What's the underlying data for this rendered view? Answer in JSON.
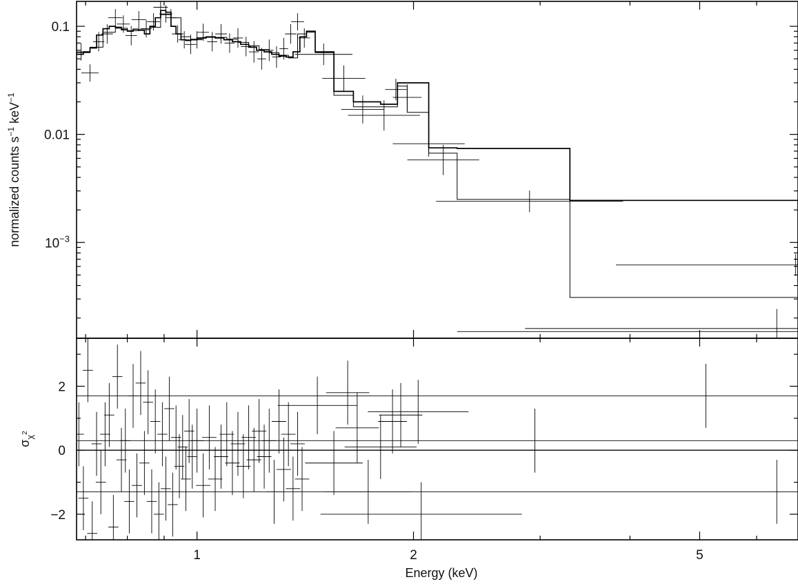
{
  "chart_data": [
    {
      "type": "step",
      "panel": "spectrum",
      "ylabel_main": "normalized counts s",
      "ylabel_exp1": "−1",
      "ylabel_mid": " keV",
      "ylabel_exp2": "−1",
      "x_scale": "log",
      "y_scale": "log",
      "xlim": [
        0.68,
        6.85
      ],
      "ylim": [
        0.00013,
        0.17
      ],
      "yticks": [
        {
          "value": 0.1,
          "label": "0.1"
        },
        {
          "value": 0.01,
          "label": "0.01"
        },
        {
          "value": 0.001,
          "label": "10",
          "exp": "−3"
        }
      ],
      "model_a_edges": [
        0.68,
        0.695,
        0.71,
        0.725,
        0.74,
        0.755,
        0.77,
        0.785,
        0.8,
        0.815,
        0.83,
        0.845,
        0.86,
        0.875,
        0.89,
        0.905,
        0.92,
        0.935,
        0.95,
        0.965,
        0.98,
        1.0,
        1.03,
        1.06,
        1.09,
        1.12,
        1.15,
        1.18,
        1.21,
        1.24,
        1.27,
        1.3,
        1.33,
        1.36,
        1.39,
        1.42,
        1.46,
        1.55,
        1.65,
        1.8,
        1.9,
        2.1,
        2.3,
        3.3,
        6.85
      ],
      "model_a_values": [
        0.055,
        0.058,
        0.063,
        0.083,
        0.095,
        0.1,
        0.098,
        0.093,
        0.09,
        0.094,
        0.092,
        0.085,
        0.1,
        0.12,
        0.14,
        0.135,
        0.1,
        0.085,
        0.075,
        0.074,
        0.075,
        0.078,
        0.08,
        0.078,
        0.075,
        0.072,
        0.068,
        0.064,
        0.06,
        0.058,
        0.055,
        0.053,
        0.052,
        0.058,
        0.08,
        0.09,
        0.058,
        0.025,
        0.02,
        0.019,
        0.03,
        0.0075,
        0.0074,
        0.00245,
        0.00043
      ],
      "model_b_edges": [
        0.68,
        0.71,
        0.74,
        0.77,
        0.8,
        0.83,
        0.86,
        0.89,
        0.92,
        0.95,
        0.98,
        1.02,
        1.06,
        1.1,
        1.14,
        1.18,
        1.22,
        1.26,
        1.3,
        1.34,
        1.38,
        1.42,
        1.46,
        1.55,
        1.65,
        1.8,
        1.9,
        1.96,
        2.1,
        2.3,
        3.3,
        6.85
      ],
      "model_b_values": [
        0.057,
        0.064,
        0.088,
        0.096,
        0.091,
        0.093,
        0.098,
        0.128,
        0.12,
        0.08,
        0.076,
        0.079,
        0.079,
        0.076,
        0.071,
        0.066,
        0.061,
        0.057,
        0.054,
        0.051,
        0.085,
        0.088,
        0.057,
        0.023,
        0.018,
        0.018,
        0.028,
        0.016,
        0.0067,
        0.0025,
        0.00031
      ],
      "data_points": [
        [
          0.69,
          0.058,
          0.0075,
          0.08
        ],
        [
          0.71,
          0.037,
          0.012,
          0.08
        ],
        [
          0.73,
          0.072,
          0.008,
          0.09
        ],
        [
          0.75,
          0.085,
          0.008,
          0.09
        ],
        [
          0.77,
          0.12,
          0.01,
          0.08
        ],
        [
          0.79,
          0.105,
          0.009,
          0.08
        ],
        [
          0.81,
          0.082,
          0.008,
          0.09
        ],
        [
          0.83,
          0.115,
          0.01,
          0.08
        ],
        [
          0.85,
          0.095,
          0.008,
          0.08
        ],
        [
          0.87,
          0.11,
          0.009,
          0.08
        ],
        [
          0.89,
          0.15,
          0.01,
          0.08
        ],
        [
          0.905,
          0.13,
          0.009,
          0.08
        ],
        [
          0.92,
          0.12,
          0.008,
          0.08
        ],
        [
          0.94,
          0.085,
          0.008,
          0.08
        ],
        [
          0.96,
          0.075,
          0.008,
          0.08
        ],
        [
          0.98,
          0.068,
          0.008,
          0.09
        ],
        [
          1.0,
          0.075,
          0.007,
          0.08
        ],
        [
          1.02,
          0.088,
          0.008,
          0.08
        ],
        [
          1.05,
          0.072,
          0.007,
          0.09
        ],
        [
          1.08,
          0.085,
          0.008,
          0.09
        ],
        [
          1.11,
          0.07,
          0.007,
          0.09
        ],
        [
          1.14,
          0.078,
          0.007,
          0.09
        ],
        [
          1.17,
          0.065,
          0.007,
          0.09
        ],
        [
          1.2,
          0.058,
          0.007,
          0.1
        ],
        [
          1.23,
          0.05,
          0.006,
          0.1
        ],
        [
          1.26,
          0.06,
          0.006,
          0.1
        ],
        [
          1.29,
          0.052,
          0.006,
          0.1
        ],
        [
          1.32,
          0.062,
          0.006,
          0.1
        ],
        [
          1.35,
          0.085,
          0.008,
          0.09
        ],
        [
          1.38,
          0.11,
          0.009,
          0.08
        ],
        [
          1.41,
          0.078,
          0.008,
          0.09
        ],
        [
          1.5,
          0.055,
          0.04,
          0.1
        ],
        [
          1.6,
          0.033,
          0.03,
          0.12
        ],
        [
          1.7,
          0.017,
          0.03,
          0.13
        ],
        [
          1.82,
          0.015,
          0.05,
          0.14
        ],
        [
          1.89,
          0.026,
          0.015,
          0.1
        ],
        [
          1.96,
          0.022,
          0.02,
          0.12
        ],
        [
          2.1,
          0.0082,
          0.05,
          0.12
        ],
        [
          2.2,
          0.0058,
          0.05,
          0.14
        ],
        [
          2.9,
          0.0024,
          0.13,
          0.1
        ],
        [
          6.8,
          0.00062,
          0.25,
          0.1
        ],
        [
          6.4,
          0.00016,
          0.35,
          0.18
        ]
      ],
      "bg_segments": [
        [
          2.3,
          6.85,
          0.00015
        ]
      ]
    },
    {
      "type": "residuals",
      "panel": "residuals",
      "xlabel": "Energy (keV)",
      "ylabel_main": "σ",
      "ylabel_sub": "χ",
      "ylabel_sup": "2",
      "x_scale": "log",
      "xlim": [
        0.68,
        6.85
      ],
      "ylim": [
        -2.8,
        3.5
      ],
      "yticks": [
        {
          "value": 2,
          "label": "2"
        },
        {
          "value": 0,
          "label": "0"
        },
        {
          "value": -2,
          "label": "−2"
        }
      ],
      "xticks": [
        {
          "value": 1,
          "label": "1"
        },
        {
          "value": 2,
          "label": "2"
        },
        {
          "value": 5,
          "label": "5"
        }
      ],
      "x_minor_ticks": [
        0.7,
        0.8,
        0.9,
        3,
        4,
        6
      ],
      "residuals": [
        [
          0.685,
          0.5,
          0.007,
          1.0
        ],
        [
          0.695,
          -1.5,
          0.007,
          1.0
        ],
        [
          0.705,
          2.5,
          0.007,
          1.0
        ],
        [
          0.715,
          -2.6,
          0.007,
          1.0
        ],
        [
          0.725,
          0.2,
          0.007,
          1.0
        ],
        [
          0.735,
          -1.0,
          0.007,
          1.0
        ],
        [
          0.745,
          0.5,
          0.007,
          1.0
        ],
        [
          0.755,
          1.1,
          0.007,
          1.0
        ],
        [
          0.765,
          -2.4,
          0.007,
          1.0
        ],
        [
          0.775,
          2.3,
          0.007,
          1.0
        ],
        [
          0.785,
          -0.3,
          0.007,
          1.0
        ],
        [
          0.795,
          0.3,
          0.007,
          1.0
        ],
        [
          0.805,
          -1.6,
          0.007,
          1.0
        ],
        [
          0.815,
          1.7,
          0.007,
          1.0
        ],
        [
          0.825,
          -1.1,
          0.007,
          1.0
        ],
        [
          0.835,
          2.1,
          0.007,
          1.0
        ],
        [
          0.845,
          -0.4,
          0.007,
          1.0
        ],
        [
          0.855,
          1.5,
          0.007,
          1.0
        ],
        [
          0.865,
          -1.6,
          0.007,
          1.0
        ],
        [
          0.875,
          0.9,
          0.007,
          1.0
        ],
        [
          0.885,
          -2.0,
          0.007,
          1.0
        ],
        [
          0.895,
          0.5,
          0.007,
          1.0
        ],
        [
          0.905,
          -1.2,
          0.007,
          1.0
        ],
        [
          0.915,
          1.3,
          0.007,
          1.0
        ],
        [
          0.925,
          -1.7,
          0.007,
          1.0
        ],
        [
          0.935,
          0.4,
          0.007,
          1.0
        ],
        [
          0.945,
          -0.5,
          0.007,
          1.0
        ],
        [
          0.955,
          0.1,
          0.007,
          1.0
        ],
        [
          0.965,
          -0.9,
          0.007,
          1.0
        ],
        [
          0.975,
          0.6,
          0.007,
          1.0
        ],
        [
          0.985,
          -0.2,
          0.007,
          1.0
        ],
        [
          1.0,
          0.3,
          0.01,
          1.0
        ],
        [
          1.02,
          -1.1,
          0.01,
          1.0
        ],
        [
          1.04,
          0.4,
          0.01,
          1.0
        ],
        [
          1.06,
          -0.9,
          0.01,
          1.0
        ],
        [
          1.08,
          -0.2,
          0.01,
          1.0
        ],
        [
          1.1,
          0.5,
          0.01,
          1.0
        ],
        [
          1.12,
          -0.4,
          0.01,
          1.0
        ],
        [
          1.14,
          0.2,
          0.01,
          1.0
        ],
        [
          1.16,
          -0.5,
          0.01,
          1.0
        ],
        [
          1.18,
          0.4,
          0.01,
          1.0
        ],
        [
          1.2,
          -0.3,
          0.01,
          1.0
        ],
        [
          1.22,
          0.6,
          0.01,
          1.0
        ],
        [
          1.24,
          -0.2,
          0.01,
          1.0
        ],
        [
          1.26,
          0.3,
          0.01,
          1.0
        ],
        [
          1.28,
          -1.3,
          0.01,
          1.0
        ],
        [
          1.3,
          0.9,
          0.01,
          1.0
        ],
        [
          1.32,
          -0.6,
          0.01,
          1.0
        ],
        [
          1.34,
          0.5,
          0.01,
          1.0
        ],
        [
          1.36,
          -1.2,
          0.01,
          1.0
        ],
        [
          1.38,
          0.2,
          0.01,
          1.0
        ],
        [
          1.4,
          -0.9,
          0.01,
          1.0
        ],
        [
          1.47,
          1.4,
          0.055,
          0.9
        ],
        [
          1.55,
          -0.4,
          0.04,
          1.0
        ],
        [
          1.62,
          1.8,
          0.03,
          1.0
        ],
        [
          1.67,
          0.7,
          0.03,
          1.1
        ],
        [
          1.73,
          -1.3,
          0.06,
          1.0
        ],
        [
          1.8,
          0.1,
          0.05,
          1.0
        ],
        [
          1.87,
          0.9,
          0.02,
          1.0
        ],
        [
          1.92,
          1.1,
          0.03,
          1.0
        ],
        [
          2.03,
          1.2,
          0.07,
          1.0
        ],
        [
          2.05,
          -2.0,
          0.14,
          1.0
        ],
        [
          2.95,
          0.3,
          0.65,
          1.0
        ],
        [
          5.1,
          1.7,
          1.75,
          1.0
        ],
        [
          6.4,
          -1.3,
          1.05,
          1.0
        ]
      ]
    }
  ]
}
